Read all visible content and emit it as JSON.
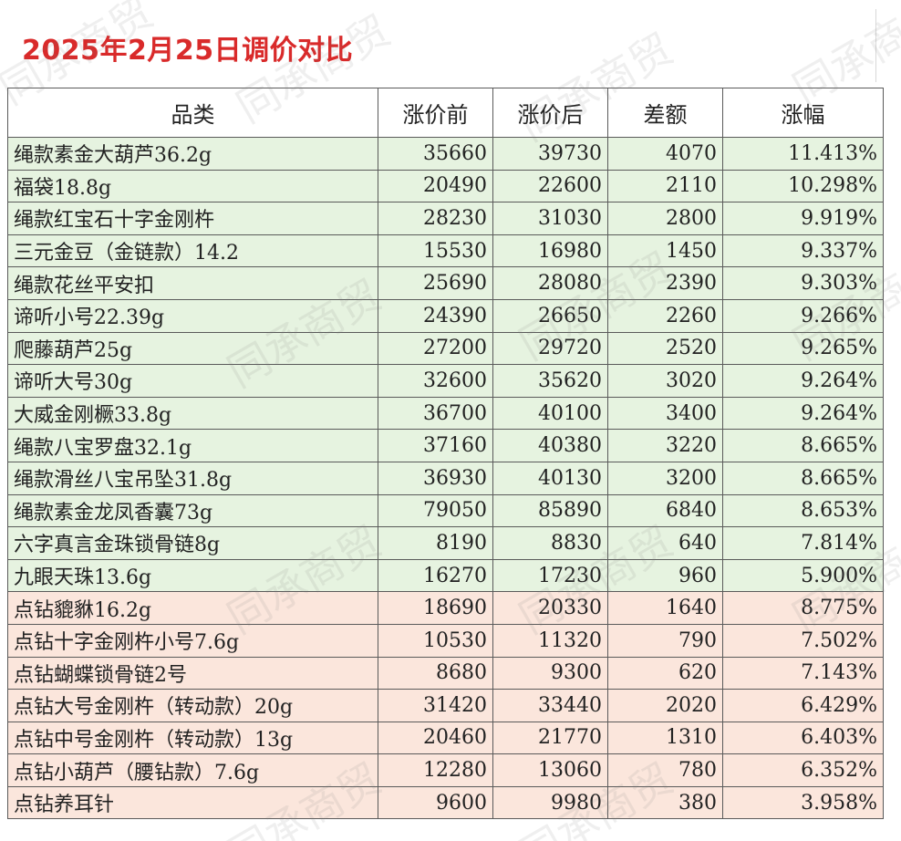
{
  "title": "2025年2月25日调价对比",
  "watermark": "同承商贸",
  "table": {
    "headers": [
      "品类",
      "涨价前",
      "涨价后",
      "差额",
      "涨幅"
    ],
    "rows": [
      {
        "group": "green",
        "name": "绳款素金大葫芦36.2g",
        "before": "35660",
        "after": "39730",
        "diff": "4070",
        "pct": "11.413%"
      },
      {
        "group": "green",
        "name": "福袋18.8g",
        "before": "20490",
        "after": "22600",
        "diff": "2110",
        "pct": "10.298%"
      },
      {
        "group": "green",
        "name": "绳款红宝石十字金刚杵",
        "before": "28230",
        "after": "31030",
        "diff": "2800",
        "pct": "9.919%"
      },
      {
        "group": "green",
        "name": "三元金豆（金链款）14.2",
        "before": "15530",
        "after": "16980",
        "diff": "1450",
        "pct": "9.337%"
      },
      {
        "group": "green",
        "name": "绳款花丝平安扣",
        "before": "25690",
        "after": "28080",
        "diff": "2390",
        "pct": "9.303%"
      },
      {
        "group": "green",
        "name": "谛听小号22.39g",
        "before": "24390",
        "after": "26650",
        "diff": "2260",
        "pct": "9.266%"
      },
      {
        "group": "green",
        "name": "爬藤葫芦25g",
        "before": "27200",
        "after": "29720",
        "diff": "2520",
        "pct": "9.265%"
      },
      {
        "group": "green",
        "name": "谛听大号30g",
        "before": "32600",
        "after": "35620",
        "diff": "3020",
        "pct": "9.264%"
      },
      {
        "group": "green",
        "name": "大威金刚橛33.8g",
        "before": "36700",
        "after": "40100",
        "diff": "3400",
        "pct": "9.264%"
      },
      {
        "group": "green",
        "name": "绳款八宝罗盘32.1g",
        "before": "37160",
        "after": "40380",
        "diff": "3220",
        "pct": "8.665%"
      },
      {
        "group": "green",
        "name": "绳款滑丝八宝吊坠31.8g",
        "before": "36930",
        "after": "40130",
        "diff": "3200",
        "pct": "8.665%"
      },
      {
        "group": "green",
        "name": "绳款素金龙凤香囊73g",
        "before": "79050",
        "after": "85890",
        "diff": "6840",
        "pct": "8.653%"
      },
      {
        "group": "green",
        "name": "六字真言金珠锁骨链8g",
        "before": "8190",
        "after": "8830",
        "diff": "640",
        "pct": "7.814%"
      },
      {
        "group": "green",
        "name": "九眼天珠13.6g",
        "before": "16270",
        "after": "17230",
        "diff": "960",
        "pct": "5.900%"
      },
      {
        "group": "peach",
        "name": "点钻貔貅16.2g",
        "before": "18690",
        "after": "20330",
        "diff": "1640",
        "pct": "8.775%"
      },
      {
        "group": "peach",
        "name": "点钻十字金刚杵小号7.6g",
        "before": "10530",
        "after": "11320",
        "diff": "790",
        "pct": "7.502%"
      },
      {
        "group": "peach",
        "name": "点钻蝴蝶锁骨链2号",
        "before": "8680",
        "after": "9300",
        "diff": "620",
        "pct": "7.143%"
      },
      {
        "group": "peach",
        "name": "点钻大号金刚杵（转动款）20g",
        "before": "31420",
        "after": "33440",
        "diff": "2020",
        "pct": "6.429%"
      },
      {
        "group": "peach",
        "name": "点钻中号金刚杵（转动款）13g",
        "before": "20460",
        "after": "21770",
        "diff": "1310",
        "pct": "6.403%"
      },
      {
        "group": "peach",
        "name": "点钻小葫芦（腰钻款）7.6g",
        "before": "12280",
        "after": "13060",
        "diff": "780",
        "pct": "6.352%"
      },
      {
        "group": "peach",
        "name": "点钻养耳针",
        "before": "9600",
        "after": "9980",
        "diff": "380",
        "pct": "3.958%"
      }
    ]
  },
  "colors": {
    "title": "#d92a2a",
    "green_row": "#e6f3e0",
    "peach_row": "#fbe6dc",
    "border": "#5a5a5a"
  }
}
